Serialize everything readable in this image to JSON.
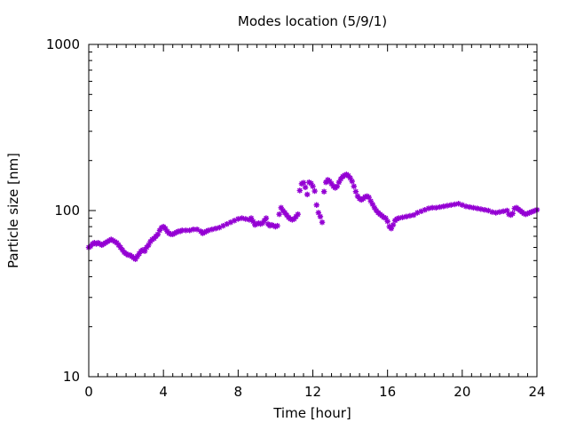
{
  "chart_data": {
    "type": "scatter",
    "title": "Modes location (5/9/1)",
    "xlabel": "Time [hour]",
    "ylabel": "Particle size [nm]",
    "xlim": [
      0,
      24
    ],
    "ylim": [
      10,
      1000
    ],
    "y_scale": "log",
    "x_ticks": [
      0,
      4,
      8,
      12,
      16,
      20,
      24
    ],
    "x_tick_labels": [
      "0",
      "4",
      "8",
      "12",
      "16",
      "20",
      "24"
    ],
    "y_ticks": [
      10,
      100,
      1000
    ],
    "y_tick_labels": [
      "10",
      "100",
      "1000"
    ],
    "grid": false,
    "legend": "none",
    "marker": "asterisk",
    "series": [
      {
        "color": "#9400d3",
        "points": [
          [
            0.0,
            60
          ],
          [
            0.1,
            61
          ],
          [
            0.2,
            63
          ],
          [
            0.3,
            64
          ],
          [
            0.4,
            63
          ],
          [
            0.5,
            64
          ],
          [
            0.6,
            63
          ],
          [
            0.7,
            62
          ],
          [
            0.8,
            63
          ],
          [
            0.9,
            64
          ],
          [
            1.0,
            65
          ],
          [
            1.1,
            66
          ],
          [
            1.2,
            67
          ],
          [
            1.3,
            66
          ],
          [
            1.4,
            65
          ],
          [
            1.5,
            64
          ],
          [
            1.6,
            62
          ],
          [
            1.7,
            60
          ],
          [
            1.8,
            58
          ],
          [
            1.9,
            56
          ],
          [
            2.0,
            55
          ],
          [
            2.1,
            54
          ],
          [
            2.2,
            54
          ],
          [
            2.3,
            53
          ],
          [
            2.4,
            52
          ],
          [
            2.5,
            51
          ],
          [
            2.6,
            53
          ],
          [
            2.7,
            55
          ],
          [
            2.8,
            57
          ],
          [
            2.9,
            58
          ],
          [
            3.0,
            57
          ],
          [
            3.1,
            60
          ],
          [
            3.2,
            62
          ],
          [
            3.3,
            65
          ],
          [
            3.4,
            67
          ],
          [
            3.5,
            68
          ],
          [
            3.6,
            70
          ],
          [
            3.7,
            72
          ],
          [
            3.8,
            76
          ],
          [
            3.9,
            79
          ],
          [
            4.0,
            80
          ],
          [
            4.1,
            78
          ],
          [
            4.2,
            75
          ],
          [
            4.3,
            73
          ],
          [
            4.4,
            72
          ],
          [
            4.5,
            72
          ],
          [
            4.6,
            73
          ],
          [
            4.7,
            74
          ],
          [
            4.8,
            75
          ],
          [
            4.9,
            75
          ],
          [
            5.0,
            76
          ],
          [
            5.2,
            76
          ],
          [
            5.4,
            76
          ],
          [
            5.6,
            77
          ],
          [
            5.8,
            77
          ],
          [
            6.0,
            75
          ],
          [
            6.1,
            73
          ],
          [
            6.2,
            74
          ],
          [
            6.3,
            75
          ],
          [
            6.4,
            76
          ],
          [
            6.6,
            77
          ],
          [
            6.8,
            78
          ],
          [
            7.0,
            79
          ],
          [
            7.2,
            81
          ],
          [
            7.4,
            83
          ],
          [
            7.6,
            85
          ],
          [
            7.8,
            87
          ],
          [
            8.0,
            89
          ],
          [
            8.2,
            90
          ],
          [
            8.4,
            89
          ],
          [
            8.6,
            88
          ],
          [
            8.7,
            90
          ],
          [
            8.8,
            86
          ],
          [
            8.9,
            82
          ],
          [
            9.0,
            83
          ],
          [
            9.1,
            84
          ],
          [
            9.2,
            83
          ],
          [
            9.3,
            84
          ],
          [
            9.4,
            87
          ],
          [
            9.5,
            90
          ],
          [
            9.6,
            83
          ],
          [
            9.7,
            81
          ],
          [
            9.8,
            82
          ],
          [
            9.9,
            81
          ],
          [
            10.0,
            80
          ],
          [
            10.1,
            81
          ],
          [
            10.2,
            95
          ],
          [
            10.3,
            104
          ],
          [
            10.4,
            100
          ],
          [
            10.5,
            97
          ],
          [
            10.6,
            94
          ],
          [
            10.7,
            91
          ],
          [
            10.8,
            89
          ],
          [
            10.9,
            88
          ],
          [
            11.0,
            89
          ],
          [
            11.1,
            92
          ],
          [
            11.2,
            95
          ],
          [
            11.3,
            132
          ],
          [
            11.4,
            145
          ],
          [
            11.5,
            147
          ],
          [
            11.6,
            138
          ],
          [
            11.7,
            125
          ],
          [
            11.8,
            148
          ],
          [
            11.9,
            146
          ],
          [
            12.0,
            140
          ],
          [
            12.1,
            131
          ],
          [
            12.2,
            108
          ],
          [
            12.3,
            97
          ],
          [
            12.4,
            92
          ],
          [
            12.5,
            85
          ],
          [
            12.6,
            130
          ],
          [
            12.7,
            148
          ],
          [
            12.8,
            153
          ],
          [
            12.9,
            150
          ],
          [
            13.0,
            145
          ],
          [
            13.1,
            140
          ],
          [
            13.2,
            137
          ],
          [
            13.3,
            140
          ],
          [
            13.4,
            148
          ],
          [
            13.5,
            155
          ],
          [
            13.6,
            160
          ],
          [
            13.7,
            163
          ],
          [
            13.8,
            165
          ],
          [
            13.9,
            162
          ],
          [
            14.0,
            157
          ],
          [
            14.1,
            150
          ],
          [
            14.2,
            140
          ],
          [
            14.3,
            130
          ],
          [
            14.4,
            122
          ],
          [
            14.5,
            118
          ],
          [
            14.6,
            116
          ],
          [
            14.7,
            118
          ],
          [
            14.8,
            121
          ],
          [
            14.9,
            122
          ],
          [
            15.0,
            120
          ],
          [
            15.1,
            114
          ],
          [
            15.2,
            109
          ],
          [
            15.3,
            104
          ],
          [
            15.4,
            100
          ],
          [
            15.5,
            97
          ],
          [
            15.6,
            95
          ],
          [
            15.7,
            93
          ],
          [
            15.8,
            91
          ],
          [
            15.9,
            90
          ],
          [
            16.0,
            86
          ],
          [
            16.1,
            80
          ],
          [
            16.2,
            78
          ],
          [
            16.3,
            82
          ],
          [
            16.4,
            87
          ],
          [
            16.5,
            89
          ],
          [
            16.6,
            90
          ],
          [
            16.8,
            91
          ],
          [
            17.0,
            92
          ],
          [
            17.2,
            93
          ],
          [
            17.4,
            94
          ],
          [
            17.6,
            97
          ],
          [
            17.8,
            99
          ],
          [
            18.0,
            101
          ],
          [
            18.2,
            103
          ],
          [
            18.4,
            104
          ],
          [
            18.6,
            104
          ],
          [
            18.8,
            105
          ],
          [
            19.0,
            106
          ],
          [
            19.2,
            107
          ],
          [
            19.4,
            108
          ],
          [
            19.6,
            109
          ],
          [
            19.8,
            110
          ],
          [
            20.0,
            108
          ],
          [
            20.2,
            106
          ],
          [
            20.4,
            105
          ],
          [
            20.6,
            104
          ],
          [
            20.8,
            103
          ],
          [
            21.0,
            102
          ],
          [
            21.2,
            101
          ],
          [
            21.4,
            100
          ],
          [
            21.6,
            98
          ],
          [
            21.8,
            97
          ],
          [
            22.0,
            98
          ],
          [
            22.2,
            99
          ],
          [
            22.4,
            100
          ],
          [
            22.5,
            95
          ],
          [
            22.6,
            94
          ],
          [
            22.7,
            96
          ],
          [
            22.8,
            103
          ],
          [
            22.9,
            104
          ],
          [
            23.0,
            102
          ],
          [
            23.1,
            100
          ],
          [
            23.2,
            98
          ],
          [
            23.3,
            96
          ],
          [
            23.4,
            95
          ],
          [
            23.5,
            96
          ],
          [
            23.6,
            97
          ],
          [
            23.7,
            98
          ],
          [
            23.8,
            99
          ],
          [
            23.9,
            100
          ],
          [
            24.0,
            101
          ]
        ]
      }
    ]
  }
}
